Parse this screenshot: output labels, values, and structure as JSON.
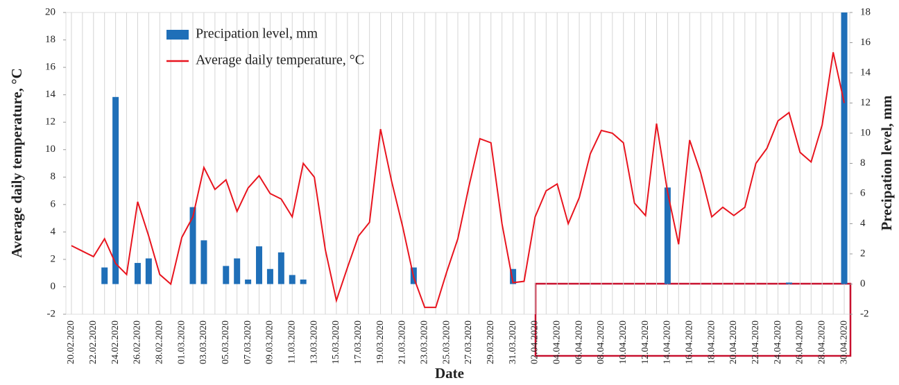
{
  "chart_data": {
    "type": "bar",
    "x_label": "Date",
    "y_label": "Average daily temperature, °C",
    "y2_label": "Precipation level, mm",
    "categories": [
      "20.02.2020",
      null,
      "22.02.2020",
      null,
      "24.02.2020",
      null,
      "26.02.2020",
      null,
      "28.02.2020",
      null,
      "01.03.2020",
      null,
      "03.03.2020",
      null,
      "05.03.2020",
      null,
      "07.03.2020",
      null,
      "09.03.2020",
      null,
      "11.03.2020",
      null,
      "13.03.2020",
      null,
      "15.03.2020",
      null,
      "17.03.2020",
      null,
      "19.03.2020",
      null,
      "21.03.2020",
      null,
      "23.03.2020",
      null,
      "25.03.2020",
      null,
      "27.03.2020",
      null,
      "29.03.2020",
      null,
      "31.03.2020",
      null,
      "02.04.2020",
      null,
      "04.04.2020",
      null,
      "06.04.2020",
      null,
      "08.04.2020",
      null,
      "10.04.2020",
      null,
      "12.04.2020",
      null,
      "14.04.2020",
      null,
      "16.04.2020",
      null,
      "18.04.2020",
      null,
      "20.04.2020",
      null,
      "22.04.2020",
      null,
      "24.04.2020",
      null,
      "26.04.2020",
      null,
      "28.04.2020",
      null,
      "30.04.2020"
    ],
    "series": [
      {
        "name": "Precipation level, mm",
        "type": "bar",
        "axis": "y2",
        "color": "#1f6fb8",
        "values": [
          0,
          0,
          0,
          1.1,
          12.4,
          0,
          1.4,
          1.7,
          0,
          0,
          0,
          5.1,
          2.9,
          0,
          1.2,
          1.7,
          0.3,
          2.5,
          1.0,
          2.1,
          0.6,
          0.3,
          0,
          0,
          0,
          0,
          0,
          0,
          0,
          0,
          0,
          1.1,
          0,
          0,
          0,
          0,
          0,
          0,
          0,
          0,
          1.0,
          0,
          0,
          0,
          0,
          0,
          0,
          0,
          0,
          0,
          0,
          0,
          0,
          0,
          6.4,
          0,
          0,
          0,
          0,
          0,
          0,
          0,
          0,
          0,
          0,
          0.1,
          0,
          0,
          0,
          0,
          18.0
        ]
      },
      {
        "name": "Average daily temperature, °C",
        "type": "line",
        "axis": "y",
        "color": "#e8141e",
        "values": [
          3.0,
          2.6,
          2.2,
          3.5,
          1.7,
          0.9,
          6.2,
          3.7,
          0.9,
          0.2,
          3.6,
          5.1,
          8.7,
          7.1,
          7.8,
          5.5,
          7.2,
          8.1,
          6.8,
          6.4,
          5.1,
          9.0,
          8.0,
          2.7,
          -1.0,
          1.4,
          3.7,
          4.7,
          11.5,
          7.7,
          4.4,
          0.7,
          -1.5,
          -1.5,
          1.1,
          3.5,
          7.3,
          10.8,
          10.5,
          4.6,
          0.3,
          0.4,
          5.1,
          7.0,
          7.5,
          4.6,
          6.5,
          9.7,
          11.4,
          11.2,
          10.5,
          6.1,
          5.2,
          11.9,
          6.9,
          3.1,
          10.7,
          8.3,
          5.1,
          5.8,
          5.2,
          5.8,
          9.0,
          10.1,
          12.1,
          12.7,
          9.8,
          9.1,
          11.8,
          17.1,
          13.4
        ]
      }
    ],
    "ylim": [
      -2,
      20
    ],
    "yticks": [
      -2,
      0,
      2,
      4,
      6,
      8,
      10,
      12,
      14,
      16,
      18,
      20
    ],
    "y2lim": [
      -2,
      18
    ],
    "y2ticks": [
      -2,
      0,
      2,
      4,
      6,
      8,
      10,
      12,
      14,
      16,
      18
    ],
    "xgrid": true,
    "legend": "top-left"
  }
}
